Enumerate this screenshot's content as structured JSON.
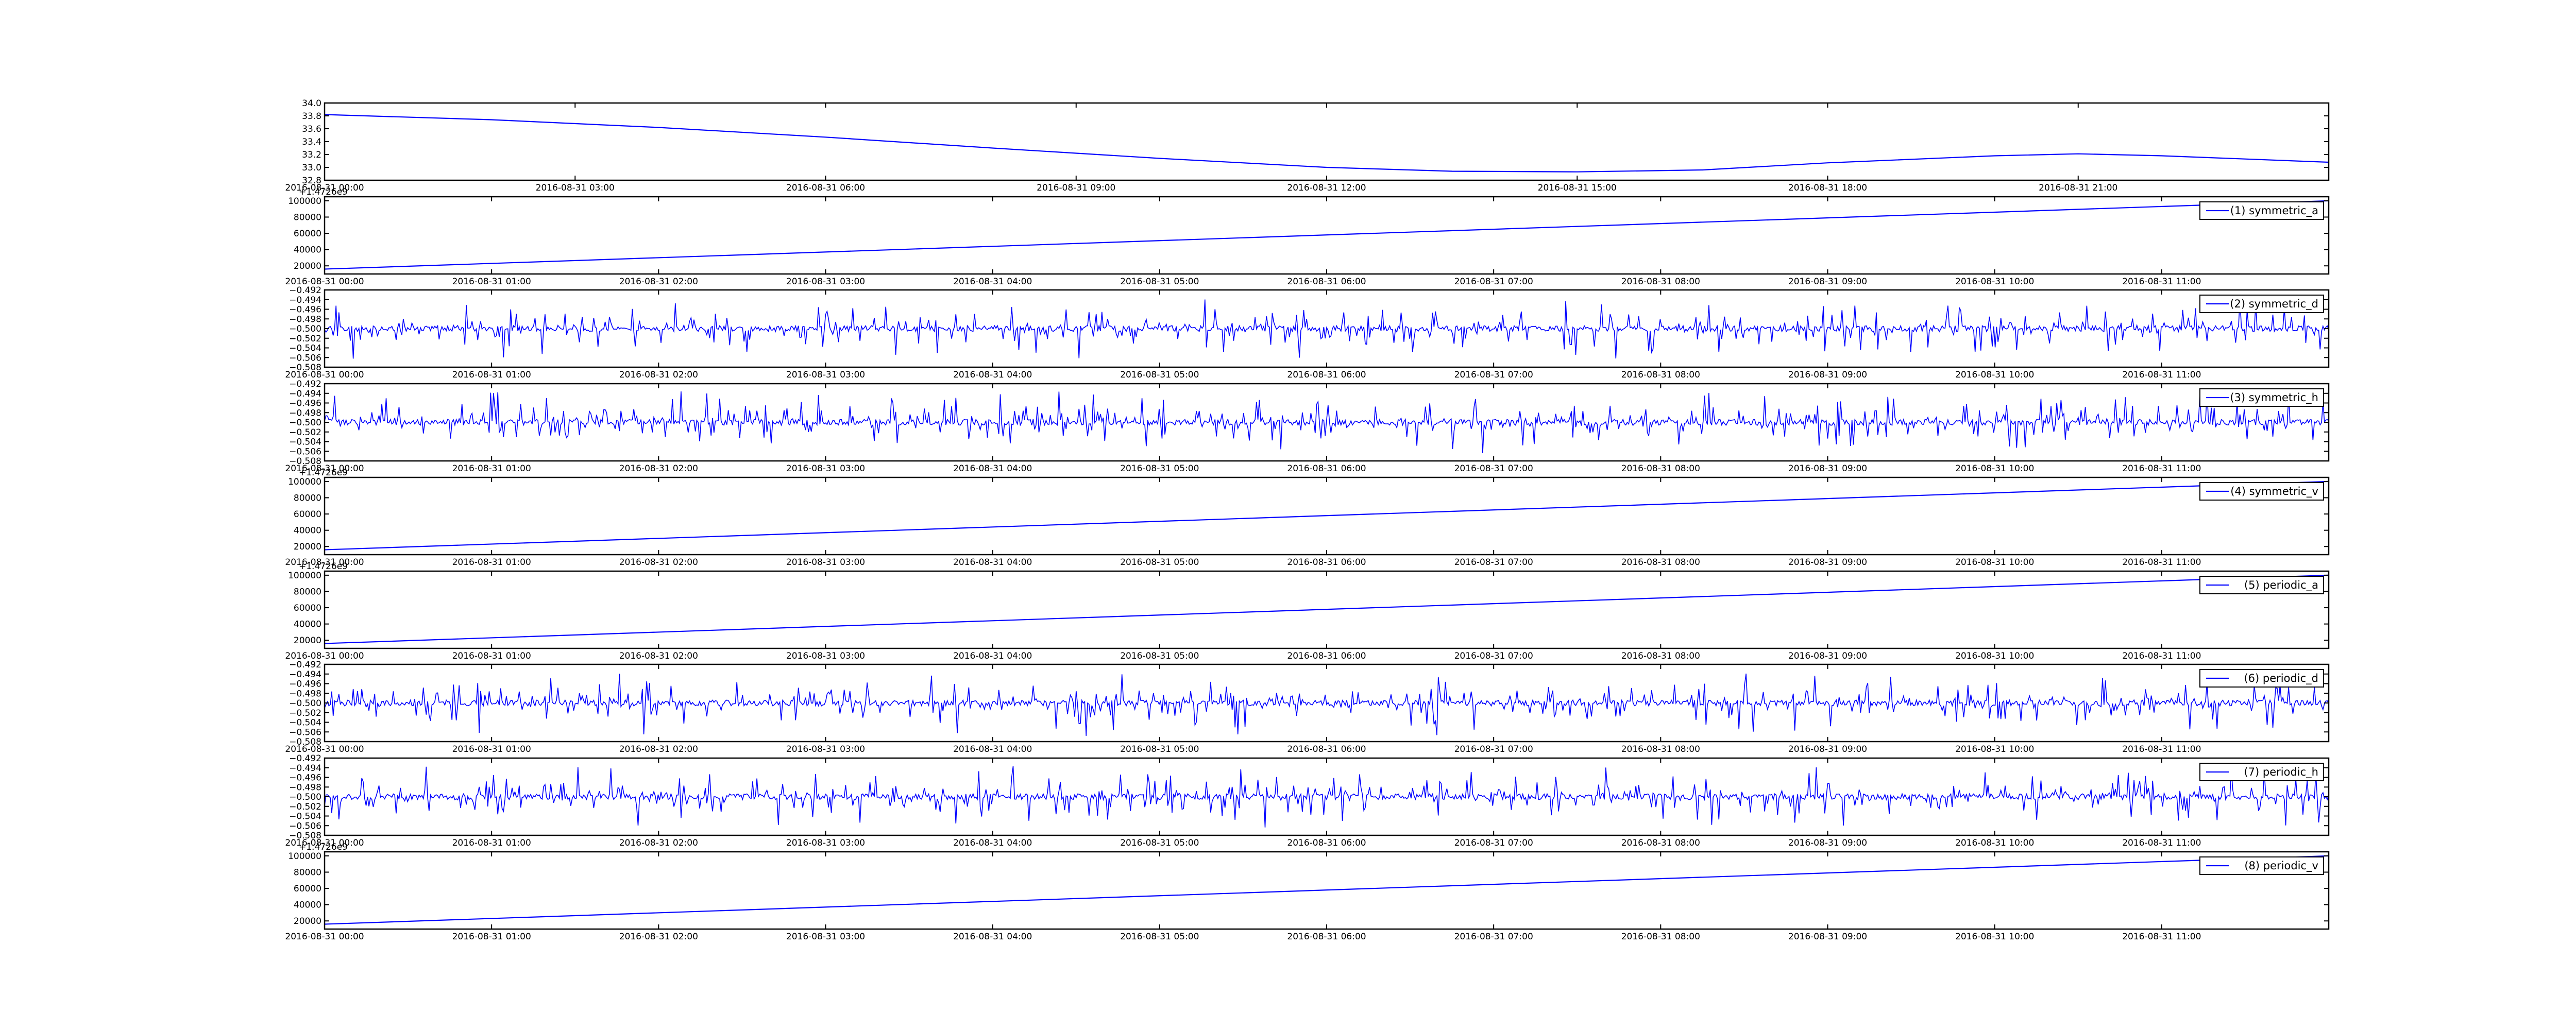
{
  "colors": {
    "series": "#0000ff",
    "axes": "#000000",
    "background": "#ffffff"
  },
  "chart_data": [
    {
      "type": "line",
      "title": "",
      "xlabel": "",
      "ylabel": "",
      "legend": null,
      "x_tick_labels": [
        "2016-08-31 00:00",
        "2016-08-31 03:00",
        "2016-08-31 06:00",
        "2016-08-31 09:00",
        "2016-08-31 12:00",
        "2016-08-31 15:00",
        "2016-08-31 18:00",
        "2016-08-31 21:00"
      ],
      "y_tick_labels": [
        "32.8",
        "33.0",
        "33.2",
        "33.4",
        "33.6",
        "33.8",
        "34.0"
      ],
      "ylim": [
        32.8,
        34.0
      ],
      "x_range_hours": [
        0,
        24
      ],
      "series": [
        {
          "x_hours": [
            0,
            2,
            4,
            6,
            8,
            10,
            12,
            13.5,
            15,
            16.5,
            18,
            20,
            21,
            22,
            24
          ],
          "values": [
            33.82,
            33.74,
            33.62,
            33.47,
            33.3,
            33.14,
            33.0,
            32.94,
            32.93,
            32.96,
            33.07,
            33.18,
            33.21,
            33.18,
            33.08
          ]
        }
      ]
    },
    {
      "type": "line",
      "title": "",
      "xlabel": "",
      "ylabel": "",
      "y_offset_text": "+1.4726e9",
      "legend": {
        "position": "top-right",
        "label": "(1) symmetric_a"
      },
      "x_tick_labels": [
        "2016-08-31 00:00",
        "2016-08-31 01:00",
        "2016-08-31 02:00",
        "2016-08-31 03:00",
        "2016-08-31 04:00",
        "2016-08-31 05:00",
        "2016-08-31 06:00",
        "2016-08-31 07:00",
        "2016-08-31 08:00",
        "2016-08-31 09:00",
        "2016-08-31 10:00",
        "2016-08-31 11:00"
      ],
      "y_tick_labels": [
        "20000",
        "40000",
        "60000",
        "80000",
        "100000"
      ],
      "ylim": [
        10000,
        105000
      ],
      "x_range_hours": [
        0,
        12
      ],
      "series": [
        {
          "name": "(1) symmetric_a",
          "kind": "linear",
          "x_hours": [
            0,
            12
          ],
          "values": [
            16000,
            100000
          ]
        }
      ]
    },
    {
      "type": "line",
      "title": "",
      "xlabel": "",
      "ylabel": "",
      "legend": {
        "position": "top-right",
        "label": "(2) symmetric_d"
      },
      "x_tick_labels": [
        "2016-08-31 00:00",
        "2016-08-31 01:00",
        "2016-08-31 02:00",
        "2016-08-31 03:00",
        "2016-08-31 04:00",
        "2016-08-31 05:00",
        "2016-08-31 06:00",
        "2016-08-31 07:00",
        "2016-08-31 08:00",
        "2016-08-31 09:00",
        "2016-08-31 10:00",
        "2016-08-31 11:00"
      ],
      "y_tick_labels": [
        "−0.508",
        "−0.506",
        "−0.504",
        "−0.502",
        "−0.500",
        "−0.498",
        "−0.496",
        "−0.494",
        "−0.492"
      ],
      "ylim": [
        -0.508,
        -0.492
      ],
      "x_range_hours": [
        0,
        12
      ],
      "series": [
        {
          "name": "(2) symmetric_d",
          "kind": "noise",
          "center": -0.5,
          "spread": 0.007,
          "seed": 2
        }
      ]
    },
    {
      "type": "line",
      "title": "",
      "xlabel": "",
      "ylabel": "",
      "legend": {
        "position": "top-right",
        "label": "(3) symmetric_h"
      },
      "x_tick_labels": [
        "2016-08-31 00:00",
        "2016-08-31 01:00",
        "2016-08-31 02:00",
        "2016-08-31 03:00",
        "2016-08-31 04:00",
        "2016-08-31 05:00",
        "2016-08-31 06:00",
        "2016-08-31 07:00",
        "2016-08-31 08:00",
        "2016-08-31 09:00",
        "2016-08-31 10:00",
        "2016-08-31 11:00"
      ],
      "y_tick_labels": [
        "−0.508",
        "−0.506",
        "−0.504",
        "−0.502",
        "−0.500",
        "−0.498",
        "−0.496",
        "−0.494",
        "−0.492"
      ],
      "ylim": [
        -0.508,
        -0.492
      ],
      "x_range_hours": [
        0,
        12
      ],
      "series": [
        {
          "name": "(3) symmetric_h",
          "kind": "noise",
          "center": -0.5,
          "spread": 0.007,
          "seed": 3
        }
      ]
    },
    {
      "type": "line",
      "title": "",
      "xlabel": "",
      "ylabel": "",
      "y_offset_text": "+1.4726e9",
      "legend": {
        "position": "top-right",
        "label": "(4) symmetric_v"
      },
      "x_tick_labels": [
        "2016-08-31 00:00",
        "2016-08-31 01:00",
        "2016-08-31 02:00",
        "2016-08-31 03:00",
        "2016-08-31 04:00",
        "2016-08-31 05:00",
        "2016-08-31 06:00",
        "2016-08-31 07:00",
        "2016-08-31 08:00",
        "2016-08-31 09:00",
        "2016-08-31 10:00",
        "2016-08-31 11:00"
      ],
      "y_tick_labels": [
        "20000",
        "40000",
        "60000",
        "80000",
        "100000"
      ],
      "ylim": [
        10000,
        105000
      ],
      "x_range_hours": [
        0,
        12
      ],
      "series": [
        {
          "name": "(4) symmetric_v",
          "kind": "linear",
          "x_hours": [
            0,
            12
          ],
          "values": [
            16000,
            100000
          ]
        }
      ]
    },
    {
      "type": "line",
      "title": "",
      "xlabel": "",
      "ylabel": "",
      "y_offset_text": "+1.4726e9",
      "legend": {
        "position": "top-right",
        "label": "(5) periodic_a"
      },
      "x_tick_labels": [
        "2016-08-31 00:00",
        "2016-08-31 01:00",
        "2016-08-31 02:00",
        "2016-08-31 03:00",
        "2016-08-31 04:00",
        "2016-08-31 05:00",
        "2016-08-31 06:00",
        "2016-08-31 07:00",
        "2016-08-31 08:00",
        "2016-08-31 09:00",
        "2016-08-31 10:00",
        "2016-08-31 11:00"
      ],
      "y_tick_labels": [
        "20000",
        "40000",
        "60000",
        "80000",
        "100000"
      ],
      "ylim": [
        10000,
        105000
      ],
      "x_range_hours": [
        0,
        12
      ],
      "series": [
        {
          "name": "(5) periodic_a",
          "kind": "linear",
          "x_hours": [
            0,
            12
          ],
          "values": [
            16000,
            100000
          ]
        }
      ]
    },
    {
      "type": "line",
      "title": "",
      "xlabel": "",
      "ylabel": "",
      "legend": {
        "position": "top-right",
        "label": "(6) periodic_d"
      },
      "x_tick_labels": [
        "2016-08-31 00:00",
        "2016-08-31 01:00",
        "2016-08-31 02:00",
        "2016-08-31 03:00",
        "2016-08-31 04:00",
        "2016-08-31 05:00",
        "2016-08-31 06:00",
        "2016-08-31 07:00",
        "2016-08-31 08:00",
        "2016-08-31 09:00",
        "2016-08-31 10:00",
        "2016-08-31 11:00"
      ],
      "y_tick_labels": [
        "−0.508",
        "−0.506",
        "−0.504",
        "−0.502",
        "−0.500",
        "−0.498",
        "−0.496",
        "−0.494",
        "−0.492"
      ],
      "ylim": [
        -0.508,
        -0.492
      ],
      "x_range_hours": [
        0,
        12
      ],
      "series": [
        {
          "name": "(6) periodic_d",
          "kind": "noise",
          "center": -0.5,
          "spread": 0.007,
          "seed": 6
        }
      ]
    },
    {
      "type": "line",
      "title": "",
      "xlabel": "",
      "ylabel": "",
      "legend": {
        "position": "top-right",
        "label": "(7) periodic_h"
      },
      "x_tick_labels": [
        "2016-08-31 00:00",
        "2016-08-31 01:00",
        "2016-08-31 02:00",
        "2016-08-31 03:00",
        "2016-08-31 04:00",
        "2016-08-31 05:00",
        "2016-08-31 06:00",
        "2016-08-31 07:00",
        "2016-08-31 08:00",
        "2016-08-31 09:00",
        "2016-08-31 10:00",
        "2016-08-31 11:00"
      ],
      "y_tick_labels": [
        "−0.508",
        "−0.506",
        "−0.504",
        "−0.502",
        "−0.500",
        "−0.498",
        "−0.496",
        "−0.494",
        "−0.492"
      ],
      "ylim": [
        -0.508,
        -0.492
      ],
      "x_range_hours": [
        0,
        12
      ],
      "series": [
        {
          "name": "(7) periodic_h",
          "kind": "noise",
          "center": -0.5,
          "spread": 0.007,
          "seed": 7
        }
      ]
    },
    {
      "type": "line",
      "title": "",
      "xlabel": "",
      "ylabel": "",
      "y_offset_text": "+1.4726e9",
      "legend": {
        "position": "top-right",
        "label": "(8) periodic_v"
      },
      "x_tick_labels": [
        "2016-08-31 00:00",
        "2016-08-31 01:00",
        "2016-08-31 02:00",
        "2016-08-31 03:00",
        "2016-08-31 04:00",
        "2016-08-31 05:00",
        "2016-08-31 06:00",
        "2016-08-31 07:00",
        "2016-08-31 08:00",
        "2016-08-31 09:00",
        "2016-08-31 10:00",
        "2016-08-31 11:00"
      ],
      "y_tick_labels": [
        "20000",
        "40000",
        "60000",
        "80000",
        "100000"
      ],
      "ylim": [
        10000,
        105000
      ],
      "x_range_hours": [
        0,
        12
      ],
      "series": [
        {
          "name": "(8) periodic_v",
          "kind": "linear",
          "x_hours": [
            0,
            12
          ],
          "values": [
            16000,
            100000
          ]
        }
      ]
    }
  ]
}
